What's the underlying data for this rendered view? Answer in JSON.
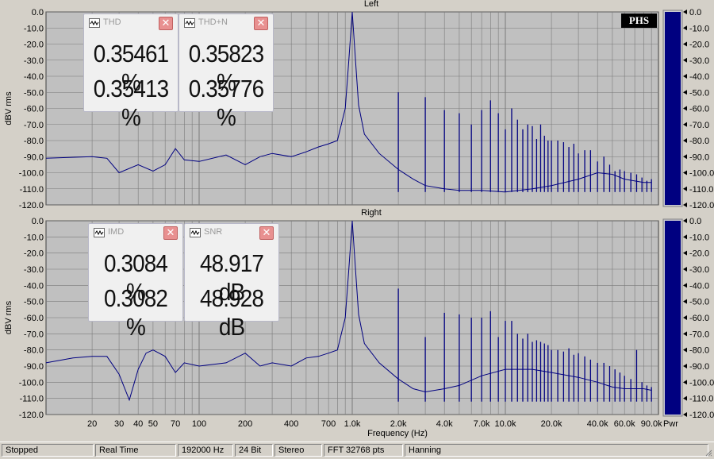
{
  "chart_data": [
    {
      "type": "line",
      "title": "Left",
      "ylabel": "dBV rms",
      "xscale": "log",
      "xlim": [
        10,
        100000
      ],
      "ylim": [
        -120,
        0
      ],
      "yticks": [
        "0.0",
        "-10.0",
        "-20.0",
        "-30.0",
        "-40.0",
        "-50.0",
        "-60.0",
        "-70.0",
        "-80.0",
        "-90.0",
        "-100.0",
        "-110.0",
        "-120.0"
      ],
      "grid": true,
      "series": [
        {
          "x": [
            10,
            20,
            25,
            30,
            40,
            50,
            60,
            70,
            80,
            100,
            150,
            200,
            250,
            300,
            400,
            500,
            600,
            700,
            800,
            900,
            950,
            1000,
            1050,
            1100,
            1200,
            1500,
            2000,
            2500,
            3000,
            4000,
            5000,
            7000,
            10000,
            15000,
            20000,
            30000,
            40000,
            50000,
            60000,
            80000,
            90000
          ],
          "y": [
            -91,
            -90,
            -91,
            -100,
            -95,
            -99,
            -95,
            -85,
            -92,
            -93,
            -89,
            -95,
            -90,
            -88,
            -90,
            -87,
            -84,
            -82,
            -80,
            -60,
            -30,
            0,
            -30,
            -58,
            -76,
            -88,
            -98,
            -104,
            -108,
            -110,
            -111,
            -111,
            -112,
            -110,
            -108,
            -104,
            -100,
            -101,
            -104,
            -106,
            -106
          ]
        }
      ],
      "harmonics_khz": [
        2,
        3,
        4,
        5,
        6,
        7,
        8,
        9,
        10,
        11,
        12,
        13,
        14,
        15,
        16,
        17,
        18,
        19,
        20,
        22,
        24,
        26,
        28,
        30,
        33,
        36,
        40,
        44,
        48,
        52,
        56,
        60,
        66,
        72,
        78,
        84,
        90
      ],
      "harmonic_levels_db": [
        -50,
        -53,
        -61,
        -63,
        -70,
        -61,
        -55,
        -63,
        -73,
        -60,
        -67,
        -73,
        -70,
        -71,
        -79,
        -70,
        -77,
        -80,
        -80,
        -80,
        -81,
        -84,
        -82,
        -88,
        -86,
        -86,
        -93,
        -90,
        -95,
        -99,
        -98,
        -99,
        -100,
        -101,
        -103,
        -105,
        -104
      ]
    },
    {
      "type": "line",
      "title": "Right",
      "ylabel": "dBV rms",
      "xlabel": "Frequency (Hz)",
      "xscale": "log",
      "xlim": [
        10,
        100000
      ],
      "ylim": [
        -120,
        0
      ],
      "xticks": [
        "20",
        "30",
        "40",
        "50",
        "70",
        "100",
        "200",
        "400",
        "700",
        "1.0k",
        "2.0k",
        "4.0k",
        "7.0k",
        "10.0k",
        "20.0k",
        "40.0k",
        "60.0k",
        "90.0k"
      ],
      "yticks": [
        "0.0",
        "-10.0",
        "-20.0",
        "-30.0",
        "-40.0",
        "-50.0",
        "-60.0",
        "-70.0",
        "-80.0",
        "-90.0",
        "-100.0",
        "-110.0",
        "-120.0"
      ],
      "grid": true,
      "series": [
        {
          "x": [
            10,
            15,
            20,
            25,
            30,
            35,
            40,
            45,
            50,
            60,
            70,
            80,
            100,
            150,
            200,
            250,
            300,
            400,
            500,
            600,
            700,
            800,
            900,
            950,
            1000,
            1050,
            1100,
            1200,
            1500,
            2000,
            2500,
            3000,
            4000,
            5000,
            7000,
            10000,
            15000,
            20000,
            30000,
            40000,
            50000,
            60000,
            80000,
            90000
          ],
          "y": [
            -88,
            -85,
            -84,
            -84,
            -95,
            -111,
            -92,
            -82,
            -80,
            -84,
            -94,
            -88,
            -90,
            -88,
            -82,
            -90,
            -88,
            -90,
            -85,
            -84,
            -82,
            -80,
            -60,
            -30,
            0,
            -30,
            -58,
            -76,
            -88,
            -98,
            -104,
            -106,
            -104,
            -102,
            -96,
            -92,
            -92,
            -94,
            -97,
            -100,
            -103,
            -104,
            -104,
            -105
          ]
        }
      ],
      "harmonics_khz": [
        2,
        3,
        4,
        5,
        6,
        7,
        8,
        9,
        10,
        11,
        12,
        13,
        14,
        15,
        16,
        17,
        18,
        19,
        20,
        22,
        24,
        26,
        28,
        30,
        33,
        36,
        40,
        44,
        48,
        52,
        56,
        60,
        66,
        72,
        78,
        84,
        90
      ],
      "harmonic_levels_db": [
        -42,
        -72,
        -57,
        -58,
        -60,
        -60,
        -56,
        -72,
        -62,
        -62,
        -70,
        -73,
        -70,
        -75,
        -74,
        -75,
        -76,
        -77,
        -80,
        -80,
        -81,
        -79,
        -83,
        -82,
        -84,
        -86,
        -88,
        -88,
        -90,
        -92,
        -94,
        -96,
        -98,
        -80,
        -100,
        -102,
        -103
      ]
    }
  ],
  "meters": [
    {
      "title": "THD",
      "values": [
        "0.35461 %",
        "0.35413 %"
      ]
    },
    {
      "title": "THD+N",
      "values": [
        "0.35823 %",
        "0.35776 %"
      ]
    },
    {
      "title": "IMD",
      "values": [
        "0.3084 %",
        "0.3082 %"
      ]
    },
    {
      "title": "SNR",
      "values": [
        "48.917 dB",
        "48.928 dB"
      ]
    }
  ],
  "pwr": {
    "label": "Pwr",
    "ticks": [
      "0.0",
      "-10.0",
      "-20.0",
      "-30.0",
      "-40.0",
      "-50.0",
      "-60.0",
      "-70.0",
      "-80.0",
      "-90.0",
      "-100.0",
      "-110.0",
      "-120.0"
    ],
    "left_level_db": 0,
    "right_level_db": 0
  },
  "logo": "PHS",
  "close_glyph": "✕",
  "status": [
    "Stopped",
    "Real Time",
    "192000 Hz",
    "24 Bit",
    "Stereo",
    "FFT 32768 pts",
    "Hanning"
  ],
  "colors": {
    "plot_bg": "#c0c0c0",
    "grid": "#7a7a7a",
    "trace": "#000080",
    "pwr_bar": "#000080",
    "window_bg": "#d4d0c8"
  }
}
